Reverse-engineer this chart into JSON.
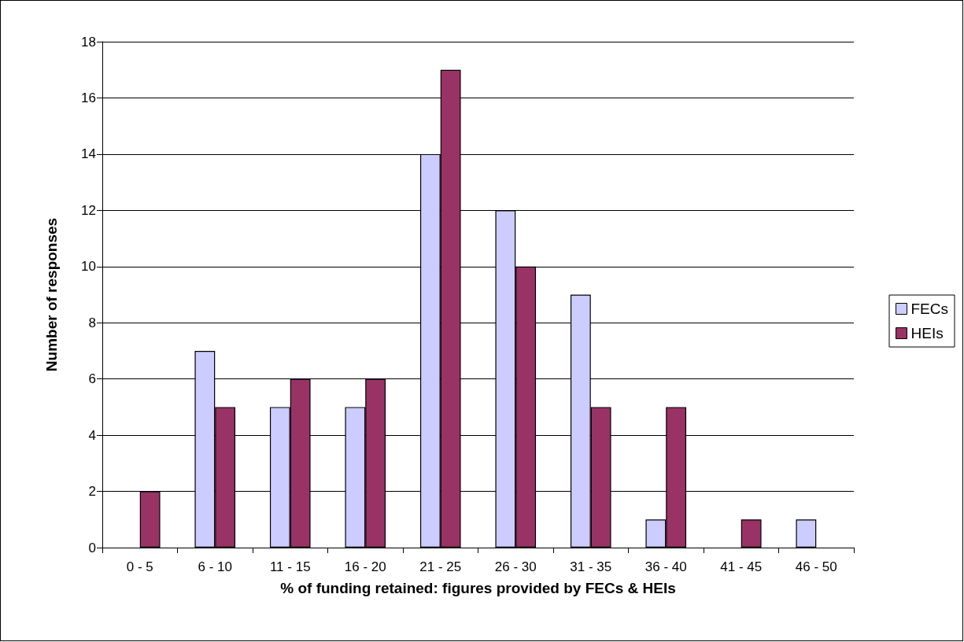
{
  "chart_data": {
    "type": "bar",
    "xlabel": "% of funding retained: figures provided by FECs & HEIs",
    "ylabel": "Number of responses",
    "categories": [
      "0 - 5",
      "6 - 10",
      "11 - 15",
      "16 - 20",
      "21 - 25",
      "26 - 30",
      "31 - 35",
      "36 - 40",
      "41 - 45",
      "46 - 50"
    ],
    "series": [
      {
        "name": "FECs",
        "color": "#ccccff",
        "values": [
          0,
          7,
          5,
          5,
          14,
          12,
          9,
          1,
          0,
          1
        ]
      },
      {
        "name": "HEIs",
        "color": "#993366",
        "values": [
          2,
          5,
          6,
          6,
          17,
          10,
          5,
          5,
          1,
          0
        ]
      }
    ],
    "ylim": [
      0,
      18
    ],
    "yticks": [
      0,
      2,
      4,
      6,
      8,
      10,
      12,
      14,
      16,
      18
    ],
    "grid": "y",
    "legend": "right"
  }
}
